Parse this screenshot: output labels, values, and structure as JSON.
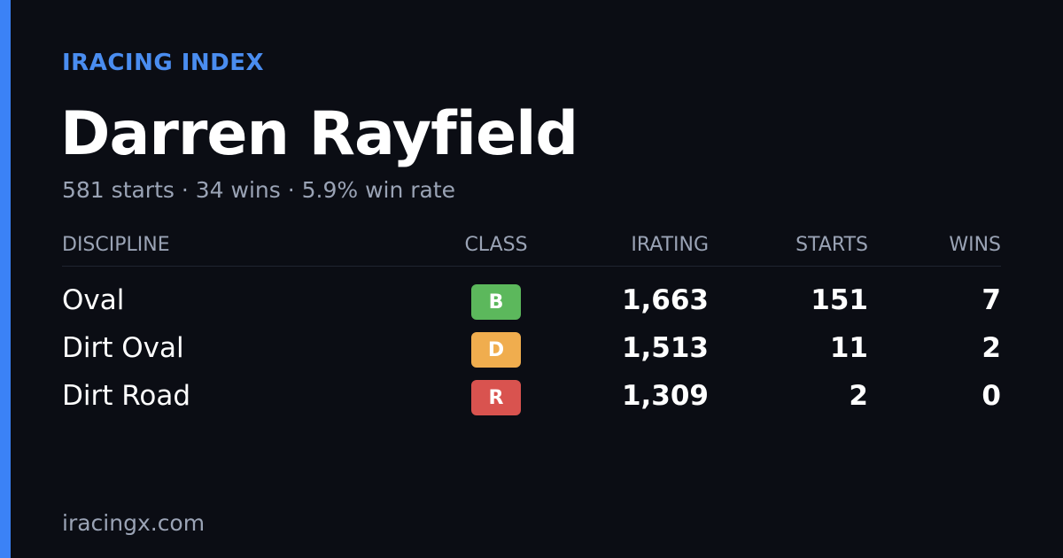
{
  "brand": "IRACING INDEX",
  "name": "Darren Rayfield",
  "summary": "581 starts · 34 wins · 5.9% win rate",
  "table": {
    "headers": [
      "DISCIPLINE",
      "CLASS",
      "IRATING",
      "STARTS",
      "WINS"
    ],
    "rows": [
      {
        "discipline": "Oval",
        "class": "B",
        "class_color": "#5cb85c",
        "irating": "1,663",
        "starts": "151",
        "wins": "7"
      },
      {
        "discipline": "Dirt Oval",
        "class": "D",
        "class_color": "#f0ad4e",
        "irating": "1,513",
        "starts": "11",
        "wins": "2"
      },
      {
        "discipline": "Dirt Road",
        "class": "R",
        "class_color": "#d9534f",
        "irating": "1,309",
        "starts": "2",
        "wins": "0"
      }
    ]
  },
  "footer": "iracingx.com"
}
